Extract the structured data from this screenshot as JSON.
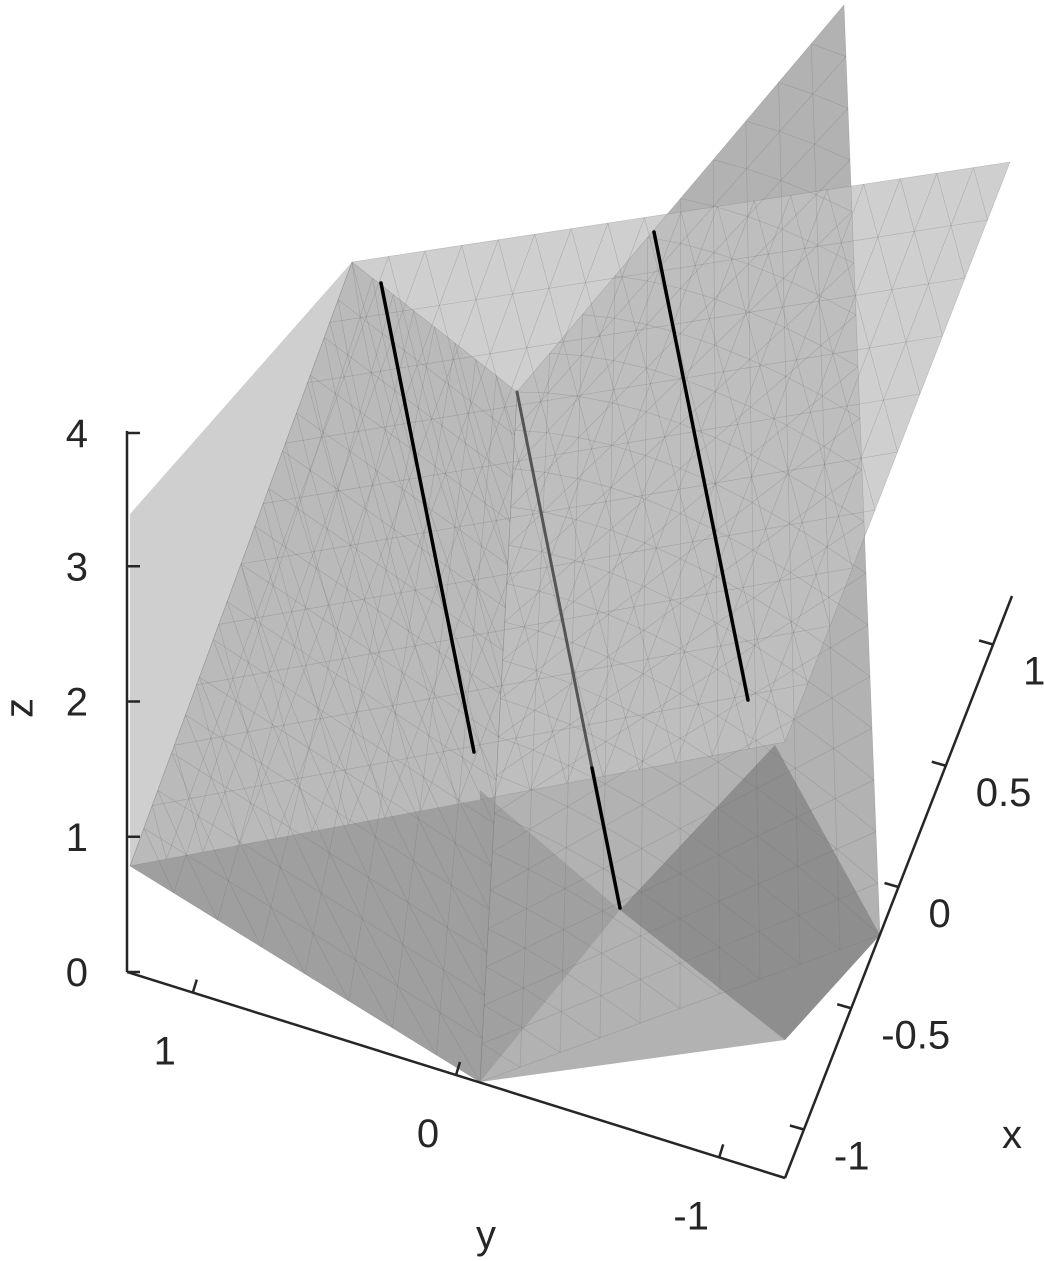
{
  "chart_data": {
    "type": "surface3d",
    "title": "",
    "xlabel": "x",
    "ylabel": "y",
    "zlabel": "z",
    "xlim": [
      -1.2,
      1.2
    ],
    "ylim": [
      -1.25,
      1.25
    ],
    "zlim": [
      0,
      4
    ],
    "x_ticks": [
      {
        "value": -1,
        "label": "-1"
      },
      {
        "value": -0.5,
        "label": "-0.5"
      },
      {
        "value": 0,
        "label": "0"
      },
      {
        "value": 0.5,
        "label": "0.5"
      },
      {
        "value": 1,
        "label": "1"
      }
    ],
    "y_ticks": [
      {
        "value": 1,
        "label": "1"
      },
      {
        "value": 0,
        "label": "0"
      },
      {
        "value": -1,
        "label": "-1"
      }
    ],
    "z_ticks": [
      {
        "value": 0,
        "label": "0"
      },
      {
        "value": 1,
        "label": "1"
      },
      {
        "value": 2,
        "label": "2"
      },
      {
        "value": 3,
        "label": "3"
      },
      {
        "value": 4,
        "label": "4"
      }
    ],
    "grid": false,
    "surfaces": [
      {
        "kind": "wedge",
        "ridge_z_at_back": 4.4,
        "ridge_z_at_front": 1.3,
        "ridge_y": 0,
        "color": "#9a9a9a"
      },
      {
        "kind": "plane",
        "color": "#bdbdbd"
      }
    ],
    "intersection_curves": [
      {
        "name": "",
        "visible": true
      },
      {
        "name": "",
        "visible": "partial"
      },
      {
        "name": "",
        "visible": true
      }
    ],
    "colors": {
      "surface_dark": "#8f8f8f",
      "surface_light": "#c8c8c8",
      "curve": "#000000",
      "axis": "#262626"
    }
  }
}
